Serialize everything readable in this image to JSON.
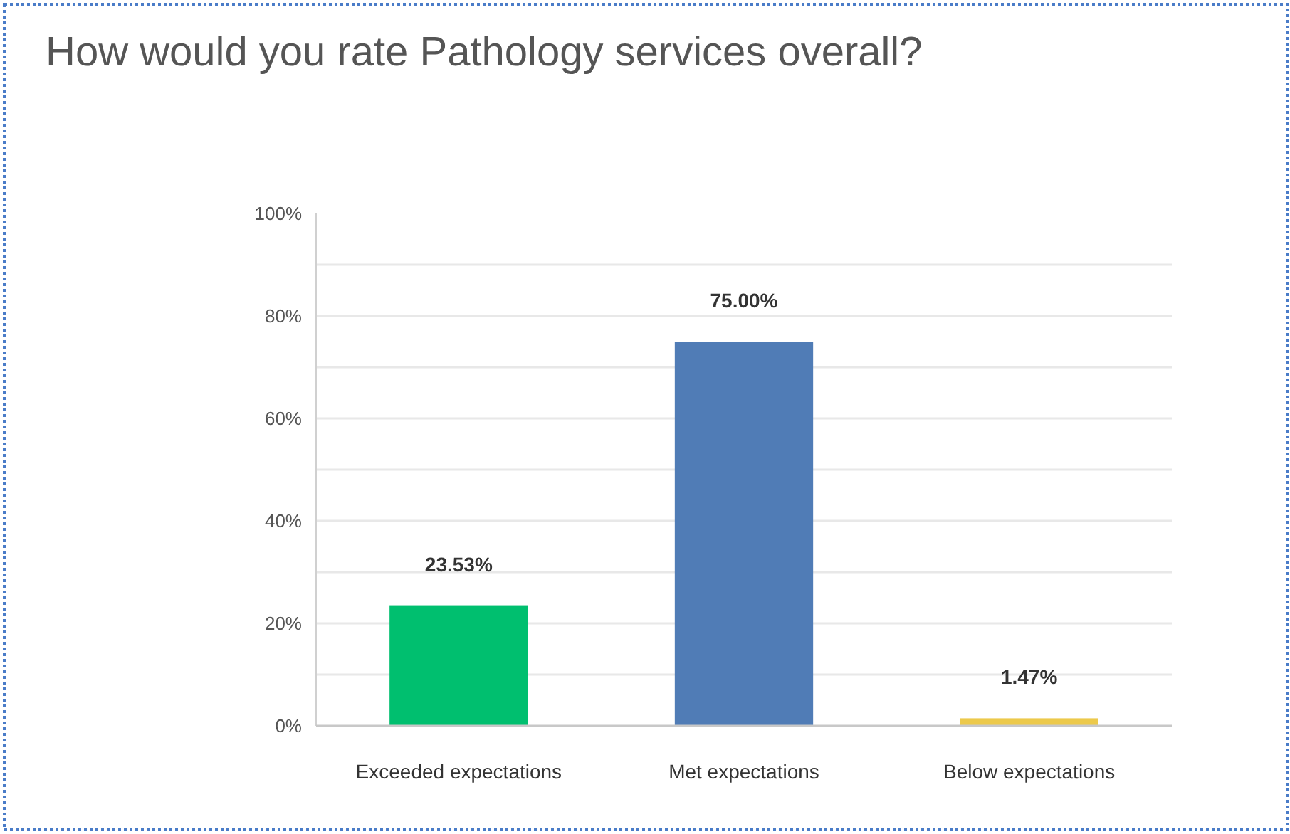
{
  "chart_data": {
    "type": "bar",
    "title": "How would you rate Pathology services overall?",
    "categories": [
      "Exceeded expectations",
      "Met expectations",
      "Below expectations"
    ],
    "values": [
      23.53,
      75,
      1.47
    ],
    "colors": [
      "#00bf6f",
      "#507cb6",
      "#ecc94b"
    ],
    "value_labels": [
      "23.53%",
      "75.00%",
      "1.47%"
    ],
    "ylim": [
      0,
      100
    ],
    "yticks": [
      {
        "value": 0,
        "label": "0%"
      },
      {
        "value": 10,
        "label": null
      },
      {
        "value": 20,
        "label": "20%"
      },
      {
        "value": 30,
        "label": null
      },
      {
        "value": 40,
        "label": "40%"
      },
      {
        "value": 50,
        "label": null
      },
      {
        "value": 60,
        "label": "60%"
      },
      {
        "value": 70,
        "label": null
      },
      {
        "value": 80,
        "label": "80%"
      },
      {
        "value": 90,
        "label": null
      },
      {
        "value": 100,
        "label": "100%"
      }
    ],
    "grid": true
  }
}
